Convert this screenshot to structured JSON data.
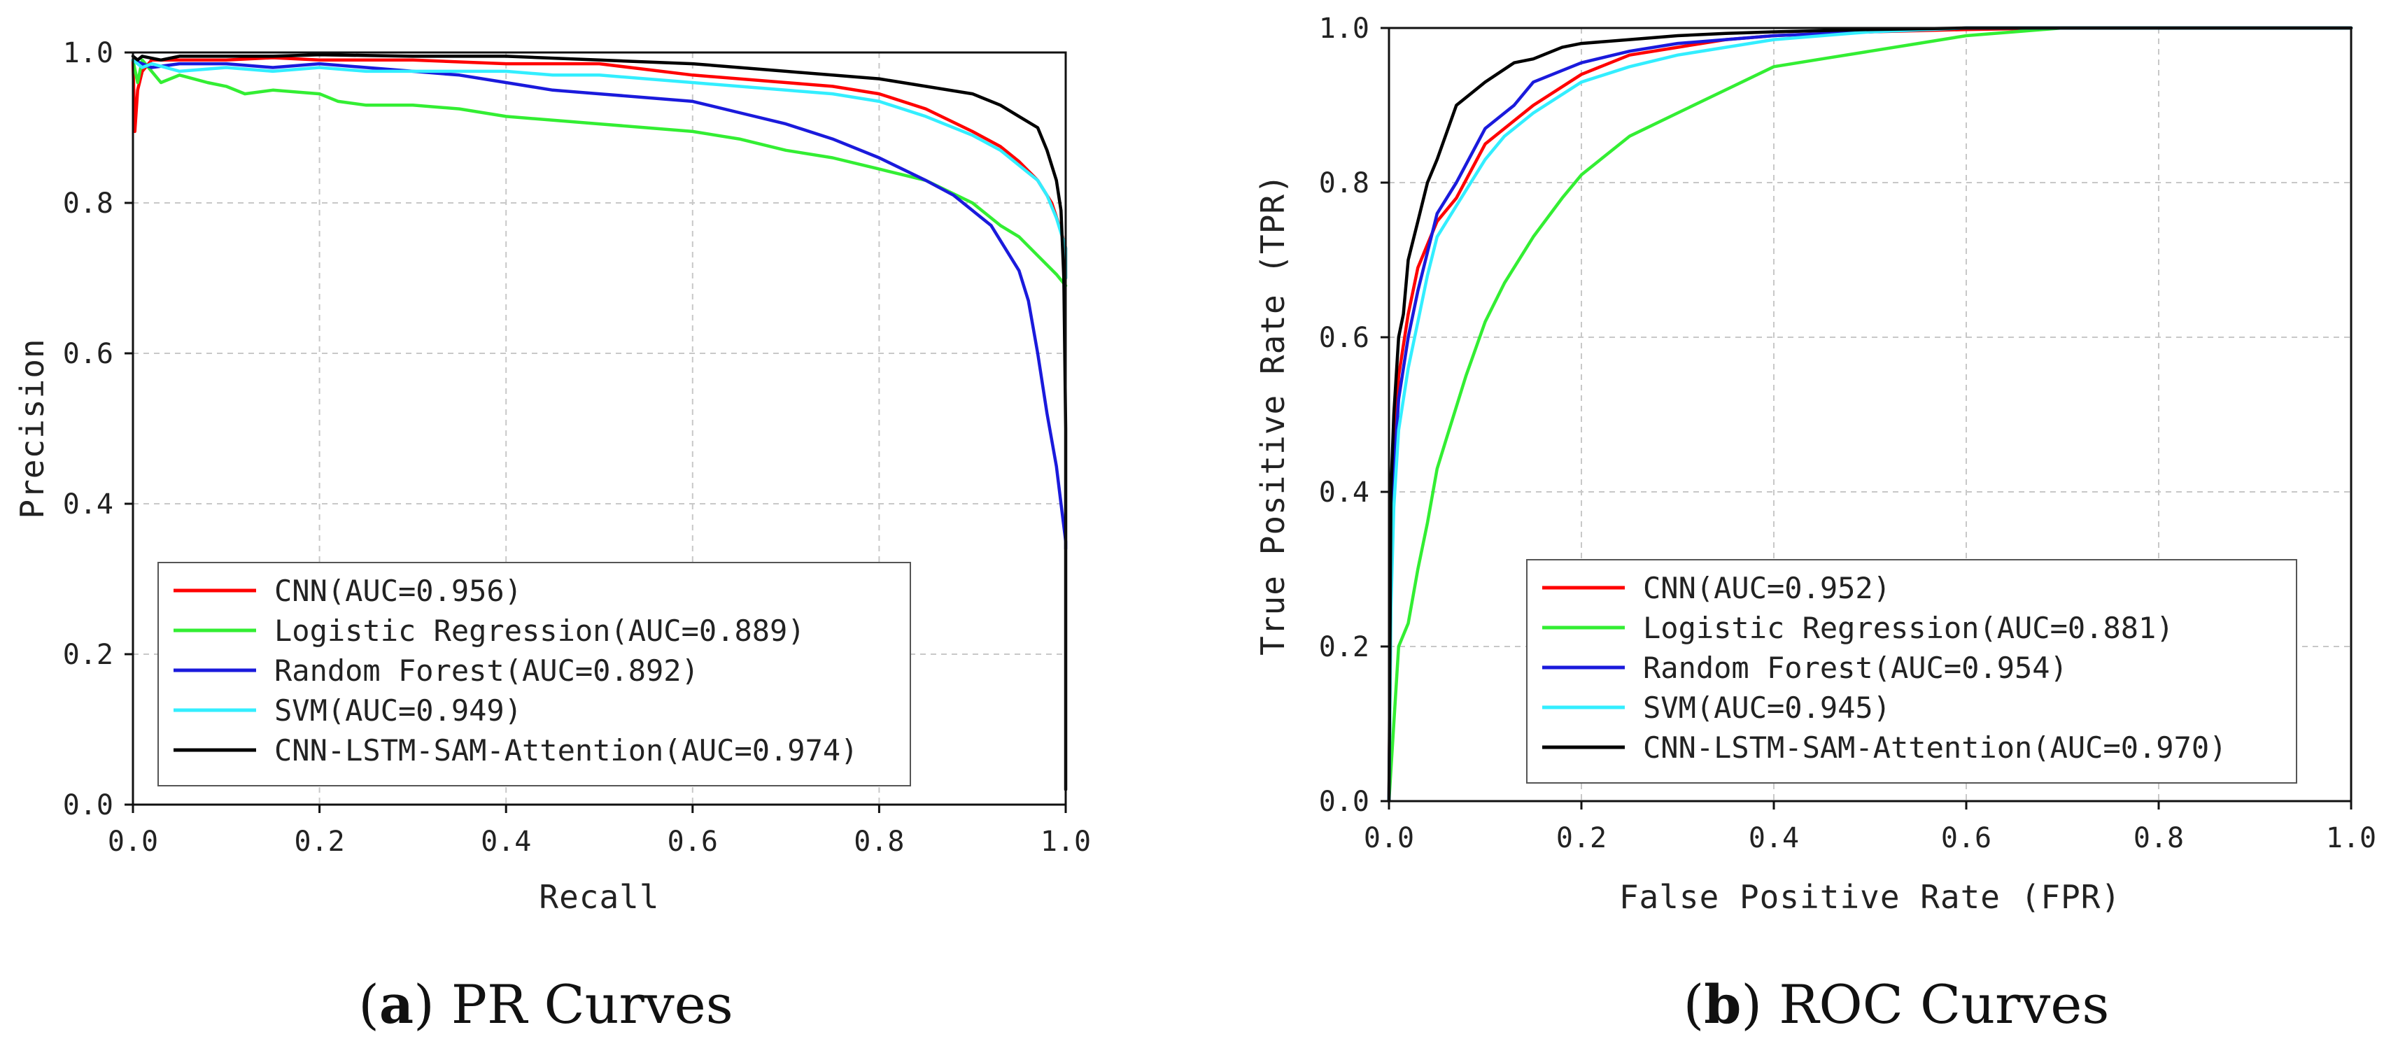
{
  "chart_data": [
    {
      "type": "line",
      "id": "pr",
      "xlabel": "Recall",
      "ylabel": "Precision",
      "xlim": [
        0.0,
        1.0
      ],
      "ylim": [
        0.0,
        1.0
      ],
      "xticks": [
        "0.0",
        "0.2",
        "0.4",
        "0.6",
        "0.8",
        "1.0"
      ],
      "yticks": [
        "0.0",
        "0.2",
        "0.4",
        "0.6",
        "0.8",
        "1.0"
      ],
      "grid": true,
      "legend_position": "bottom-left",
      "caption_letter": "a",
      "caption_text": "PR Curves",
      "series": [
        {
          "name": "CNN(AUC=0.956)",
          "color": "#ff0000",
          "x": [
            0.0,
            0.002,
            0.005,
            0.01,
            0.02,
            0.05,
            0.1,
            0.15,
            0.2,
            0.3,
            0.4,
            0.5,
            0.6,
            0.7,
            0.75,
            0.8,
            0.85,
            0.9,
            0.93,
            0.95,
            0.97,
            0.985,
            0.993,
            1.0,
            1.0
          ],
          "y": [
            0.99,
            0.895,
            0.95,
            0.975,
            0.99,
            0.99,
            0.99,
            0.993,
            0.99,
            0.99,
            0.985,
            0.985,
            0.97,
            0.96,
            0.955,
            0.945,
            0.925,
            0.895,
            0.875,
            0.855,
            0.83,
            0.8,
            0.77,
            0.74,
            0.7
          ]
        },
        {
          "name": "Logistic Regression(AUC=0.889)",
          "color": "#33ee33",
          "x": [
            0.0,
            0.005,
            0.01,
            0.02,
            0.03,
            0.05,
            0.08,
            0.1,
            0.12,
            0.15,
            0.2,
            0.22,
            0.25,
            0.3,
            0.35,
            0.4,
            0.45,
            0.5,
            0.55,
            0.6,
            0.65,
            0.7,
            0.75,
            0.8,
            0.85,
            0.9,
            0.93,
            0.95,
            0.97,
            0.99,
            1.0
          ],
          "y": [
            0.99,
            0.96,
            0.99,
            0.975,
            0.96,
            0.97,
            0.96,
            0.955,
            0.945,
            0.95,
            0.945,
            0.935,
            0.93,
            0.93,
            0.925,
            0.915,
            0.91,
            0.905,
            0.9,
            0.895,
            0.885,
            0.87,
            0.86,
            0.845,
            0.83,
            0.8,
            0.77,
            0.755,
            0.73,
            0.705,
            0.69
          ]
        },
        {
          "name": "Random Forest(AUC=0.892)",
          "color": "#1a1adc",
          "x": [
            0.0,
            0.01,
            0.02,
            0.05,
            0.1,
            0.15,
            0.2,
            0.25,
            0.3,
            0.35,
            0.4,
            0.45,
            0.5,
            0.55,
            0.6,
            0.65,
            0.7,
            0.75,
            0.8,
            0.85,
            0.88,
            0.9,
            0.92,
            0.94,
            0.95,
            0.96,
            0.97,
            0.98,
            0.99,
            0.995,
            1.0,
            1.0
          ],
          "y": [
            0.99,
            0.985,
            0.98,
            0.985,
            0.985,
            0.98,
            0.985,
            0.98,
            0.975,
            0.97,
            0.96,
            0.95,
            0.945,
            0.94,
            0.935,
            0.92,
            0.905,
            0.885,
            0.86,
            0.83,
            0.81,
            0.79,
            0.77,
            0.73,
            0.71,
            0.67,
            0.6,
            0.52,
            0.45,
            0.4,
            0.35,
            0.34
          ]
        },
        {
          "name": "SVM(AUC=0.949)",
          "color": "#33eeff",
          "x": [
            0.0,
            0.01,
            0.02,
            0.05,
            0.1,
            0.15,
            0.2,
            0.25,
            0.3,
            0.35,
            0.4,
            0.45,
            0.5,
            0.55,
            0.6,
            0.65,
            0.7,
            0.75,
            0.8,
            0.85,
            0.9,
            0.93,
            0.95,
            0.97,
            0.98,
            0.99,
            1.0,
            1.0
          ],
          "y": [
            0.99,
            0.98,
            0.985,
            0.975,
            0.98,
            0.975,
            0.98,
            0.975,
            0.975,
            0.975,
            0.975,
            0.97,
            0.97,
            0.965,
            0.96,
            0.955,
            0.95,
            0.945,
            0.935,
            0.915,
            0.89,
            0.87,
            0.85,
            0.83,
            0.81,
            0.78,
            0.74,
            0.7
          ]
        },
        {
          "name": "CNN-LSTM-SAM-Attention(AUC=0.974)",
          "color": "#000000",
          "x": [
            0.0,
            0.005,
            0.01,
            0.03,
            0.05,
            0.1,
            0.15,
            0.2,
            0.3,
            0.4,
            0.5,
            0.6,
            0.65,
            0.7,
            0.8,
            0.85,
            0.9,
            0.93,
            0.95,
            0.97,
            0.98,
            0.99,
            0.995,
            0.998,
            1.0,
            1.0
          ],
          "y": [
            0.995,
            0.99,
            0.995,
            0.99,
            0.995,
            0.995,
            0.995,
            0.997,
            0.995,
            0.995,
            0.99,
            0.985,
            0.98,
            0.975,
            0.965,
            0.955,
            0.945,
            0.93,
            0.915,
            0.9,
            0.87,
            0.83,
            0.79,
            0.7,
            0.5,
            0.02
          ]
        }
      ]
    },
    {
      "type": "line",
      "id": "roc",
      "xlabel": "False Positive Rate (FPR)",
      "ylabel": "True Positive Rate (TPR)",
      "xlim": [
        0.0,
        1.0
      ],
      "ylim": [
        0.0,
        1.0
      ],
      "xticks": [
        "0.0",
        "0.2",
        "0.4",
        "0.6",
        "0.8",
        "1.0"
      ],
      "yticks": [
        "0.0",
        "0.2",
        "0.4",
        "0.6",
        "0.8",
        "1.0"
      ],
      "grid": true,
      "legend_position": "bottom-right",
      "caption_letter": "b",
      "caption_text": "ROC Curves",
      "series": [
        {
          "name": "CNN(AUC=0.952)",
          "color": "#ff0000",
          "x": [
            0.0,
            0.002,
            0.005,
            0.01,
            0.02,
            0.03,
            0.04,
            0.05,
            0.07,
            0.1,
            0.12,
            0.15,
            0.2,
            0.25,
            0.3,
            0.35,
            0.4,
            0.5,
            0.6,
            0.7,
            0.8,
            0.9,
            1.0
          ],
          "y": [
            0.0,
            0.3,
            0.45,
            0.55,
            0.63,
            0.69,
            0.72,
            0.75,
            0.78,
            0.85,
            0.87,
            0.9,
            0.94,
            0.965,
            0.975,
            0.985,
            0.99,
            0.995,
            0.998,
            1.0,
            1.0,
            1.0,
            1.0
          ]
        },
        {
          "name": "Logistic Regression(AUC=0.881)",
          "color": "#33ee33",
          "x": [
            0.0,
            0.005,
            0.01,
            0.02,
            0.03,
            0.04,
            0.05,
            0.06,
            0.08,
            0.1,
            0.12,
            0.15,
            0.18,
            0.2,
            0.25,
            0.3,
            0.35,
            0.4,
            0.45,
            0.5,
            0.55,
            0.6,
            0.65,
            0.7,
            0.8,
            1.0
          ],
          "y": [
            0.0,
            0.1,
            0.2,
            0.23,
            0.3,
            0.36,
            0.43,
            0.47,
            0.55,
            0.62,
            0.67,
            0.73,
            0.78,
            0.81,
            0.86,
            0.89,
            0.92,
            0.95,
            0.96,
            0.97,
            0.98,
            0.99,
            0.995,
            1.0,
            1.0,
            1.0
          ]
        },
        {
          "name": "Random Forest(AUC=0.954)",
          "color": "#1a1adc",
          "x": [
            0.0,
            0.002,
            0.005,
            0.01,
            0.02,
            0.03,
            0.04,
            0.05,
            0.07,
            0.1,
            0.13,
            0.15,
            0.2,
            0.25,
            0.3,
            0.35,
            0.4,
            0.5,
            0.6,
            0.7,
            1.0
          ],
          "y": [
            0.0,
            0.28,
            0.42,
            0.52,
            0.6,
            0.66,
            0.71,
            0.76,
            0.8,
            0.87,
            0.9,
            0.93,
            0.955,
            0.97,
            0.98,
            0.985,
            0.99,
            0.995,
            1.0,
            1.0,
            1.0
          ]
        },
        {
          "name": "SVM(AUC=0.945)",
          "color": "#33eeff",
          "x": [
            0.0,
            0.002,
            0.005,
            0.01,
            0.02,
            0.03,
            0.04,
            0.05,
            0.07,
            0.1,
            0.12,
            0.15,
            0.2,
            0.25,
            0.3,
            0.35,
            0.4,
            0.5,
            0.6,
            0.7,
            1.0
          ],
          "y": [
            0.0,
            0.25,
            0.38,
            0.48,
            0.56,
            0.62,
            0.68,
            0.73,
            0.77,
            0.83,
            0.86,
            0.89,
            0.93,
            0.95,
            0.965,
            0.975,
            0.985,
            0.995,
            1.0,
            1.0,
            1.0
          ]
        },
        {
          "name": "CNN-LSTM-SAM-Attention(AUC=0.970)",
          "color": "#000000",
          "x": [
            0.0,
            0.002,
            0.005,
            0.01,
            0.015,
            0.02,
            0.03,
            0.04,
            0.05,
            0.07,
            0.1,
            0.13,
            0.15,
            0.18,
            0.2,
            0.25,
            0.3,
            0.35,
            0.4,
            0.5,
            0.6,
            0.7,
            1.0
          ],
          "y": [
            0.0,
            0.4,
            0.5,
            0.6,
            0.63,
            0.7,
            0.75,
            0.8,
            0.83,
            0.9,
            0.93,
            0.955,
            0.96,
            0.975,
            0.98,
            0.985,
            0.99,
            0.993,
            0.995,
            0.998,
            1.0,
            1.0,
            1.0
          ]
        }
      ]
    }
  ]
}
